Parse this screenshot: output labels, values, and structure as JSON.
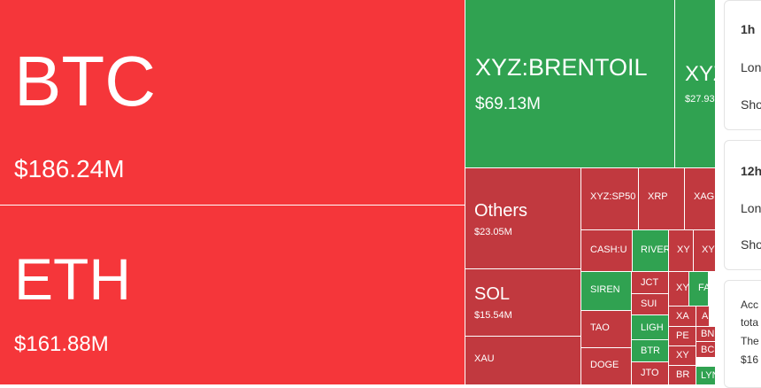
{
  "treemap": {
    "tiles": [
      {
        "label": "BTC",
        "value": "$186.24M",
        "color": "#f5363a"
      },
      {
        "label": "ETH",
        "value": "$161.88M",
        "color": "#f5363a"
      },
      {
        "label": "XYZ:BRENTOIL",
        "value": "$69.13M",
        "color": "#30a251"
      },
      {
        "label": "XYZ",
        "value": "$27.93",
        "color": "#30a251"
      },
      {
        "label": "Others",
        "value": "$23.05M",
        "color": "#c1393f"
      },
      {
        "label": "SOL",
        "value": "$15.54M",
        "color": "#c1393f"
      },
      {
        "label": "XAU",
        "color": "#c1393f"
      },
      {
        "label": "XYZ:SP50",
        "color": "#c1393f"
      },
      {
        "label": "XRP",
        "color": "#c1393f"
      },
      {
        "label": "XAG",
        "color": "#c1393f"
      },
      {
        "label": "CASH:U",
        "color": "#c1393f"
      },
      {
        "label": "RIVER",
        "color": "#30a251"
      },
      {
        "label": "XY",
        "color": "#c1393f"
      },
      {
        "label": "XY",
        "color": "#c1393f"
      },
      {
        "label": "SIREN",
        "color": "#30a251"
      },
      {
        "label": "JCT",
        "color": "#c1393f"
      },
      {
        "label": "SUI",
        "color": "#c1393f"
      },
      {
        "label": "LIGH",
        "color": "#30a251"
      },
      {
        "label": "BTR",
        "color": "#30a251"
      },
      {
        "label": "JTO",
        "color": "#c1393f"
      },
      {
        "label": "TAO",
        "color": "#c1393f"
      },
      {
        "label": "DOGE",
        "color": "#c1393f"
      },
      {
        "label": "XY",
        "color": "#c1393f"
      },
      {
        "label": "FA",
        "color": "#30a251"
      },
      {
        "label": "XA",
        "color": "#c1393f"
      },
      {
        "label": "A",
        "color": "#c1393f"
      },
      {
        "label": "PE",
        "color": "#c1393f"
      },
      {
        "label": "BN",
        "color": "#c1393f"
      },
      {
        "label": "XY",
        "color": "#c1393f"
      },
      {
        "label": "BC",
        "color": "#c1393f"
      },
      {
        "label": "BR",
        "color": "#c1393f"
      },
      {
        "label": "LYN",
        "color": "#30a251"
      }
    ]
  },
  "panel": {
    "cards": [
      {
        "lines": [
          "1h",
          "Lon",
          "Sho"
        ]
      },
      {
        "lines": [
          "12h",
          "Lon",
          "Sho"
        ]
      },
      {
        "lines": [
          "Acc",
          "tota",
          "The",
          "$16"
        ]
      }
    ]
  }
}
